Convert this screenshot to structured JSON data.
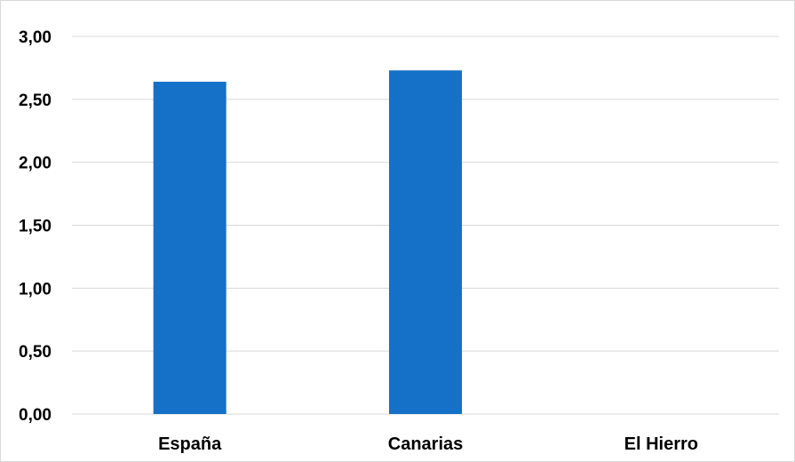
{
  "chart_data": {
    "type": "bar",
    "title": "",
    "xlabel": "",
    "ylabel": "",
    "categories": [
      "España",
      "Canarias",
      "El Hierro"
    ],
    "values": [
      2.64,
      2.73,
      null
    ],
    "ylim": [
      0,
      3
    ],
    "yticks": [
      "0,00",
      "0,50",
      "1,00",
      "1,50",
      "2,00",
      "2,50",
      "3,00"
    ],
    "ytick_values": [
      0,
      0.5,
      1,
      1.5,
      2,
      2.5,
      3
    ],
    "bar_color": "#1570c8",
    "grid": true,
    "legend": "none"
  }
}
